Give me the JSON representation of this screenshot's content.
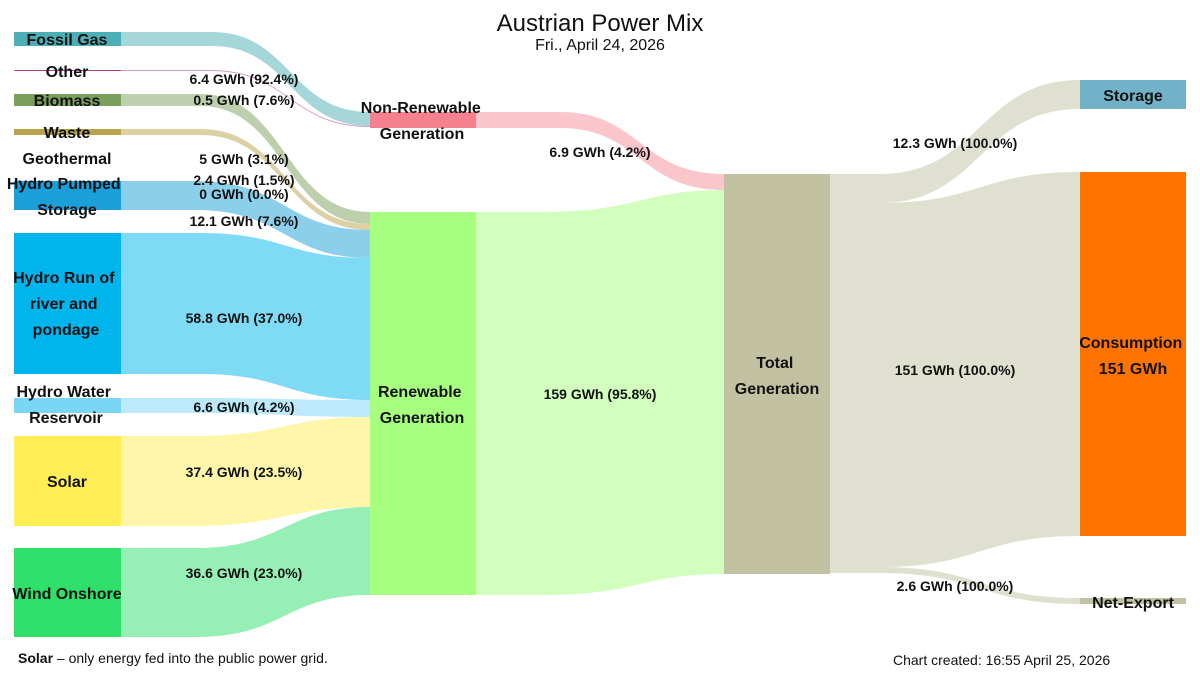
{
  "title": "Austrian Power Mix",
  "subtitle": "Fri., April 24, 2026",
  "footnote": {
    "term": "Solar",
    "text": "– only energy fed into the public power grid."
  },
  "created": "Chart created: 16:55 April 25, 2026",
  "colors": {
    "fossil_gas": "#4BAFB5",
    "other": "#B03A8C",
    "biomass": "#7BA05B",
    "waste": "#B8A44A",
    "hydro_pumped": "#1A9FD8",
    "hydro_run": "#00B5EE",
    "hydro_water_reservoir": "#7AD6F5",
    "solar": "#FFEE55",
    "wind_onshore": "#2EE06A",
    "non_renewable": "#F5808E",
    "renewable": "#A6FF7E",
    "total": "#C2C1A2",
    "storage": "#72B2C8",
    "consumption": "#FF7300",
    "net_export": "#C2C1A2"
  },
  "nodes": {
    "fossil_gas": "Fossil Gas",
    "other": "Other",
    "biomass": "Biomass",
    "waste": "Waste",
    "geothermal": "Geothermal",
    "hydro_pumped": [
      "Hydro Pumped",
      "Storage"
    ],
    "hydro_run": [
      "Hydro Run of",
      "river and",
      "pondage"
    ],
    "hydro_water_reservoir": [
      "Hydro Water",
      "Reservoir"
    ],
    "solar": "Solar",
    "wind_onshore": "Wind Onshore",
    "non_renewable": [
      "Non-Renewable",
      "Generation"
    ],
    "renewable": [
      "Renewable",
      "Generation"
    ],
    "total": [
      "Total",
      "Generation"
    ],
    "storage": "Storage",
    "consumption": [
      "Consumption",
      "151 GWh"
    ],
    "net_export": "Net-Export"
  },
  "flows": {
    "fossil_gas": "6.4 GWh (92.4%)",
    "other": "0.5 GWh (7.6%)",
    "biomass": "5 GWh (3.1%)",
    "waste": "2.4 GWh (1.5%)",
    "geothermal": "0 GWh (0.0%)",
    "hydro_pumped": "12.1 GWh (7.6%)",
    "hydro_run": "58.8 GWh (37.0%)",
    "hydro_water_reservoir": "6.6 GWh (4.2%)",
    "solar": "37.4 GWh (23.5%)",
    "wind_onshore": "36.6 GWh (23.0%)",
    "non_renewable": "6.9 GWh (4.2%)",
    "renewable": "159 GWh (95.8%)",
    "storage": "12.3 GWh (100.0%)",
    "consumption": "151 GWh (100.0%)",
    "net_export": "2.6 GWh (100.0%)"
  },
  "chart_data": {
    "type": "sankey",
    "title": "Austrian Power Mix",
    "subtitle": "Fri., April 24, 2026",
    "unit": "GWh",
    "links": [
      {
        "source": "Fossil Gas",
        "target": "Non-Renewable Generation",
        "value": 6.4,
        "share_pct": 92.4
      },
      {
        "source": "Other",
        "target": "Non-Renewable Generation",
        "value": 0.5,
        "share_pct": 7.6
      },
      {
        "source": "Biomass",
        "target": "Renewable Generation",
        "value": 5,
        "share_pct": 3.1
      },
      {
        "source": "Waste",
        "target": "Renewable Generation",
        "value": 2.4,
        "share_pct": 1.5
      },
      {
        "source": "Geothermal",
        "target": "Renewable Generation",
        "value": 0,
        "share_pct": 0.0
      },
      {
        "source": "Hydro Pumped Storage",
        "target": "Renewable Generation",
        "value": 12.1,
        "share_pct": 7.6
      },
      {
        "source": "Hydro Run of river and pondage",
        "target": "Renewable Generation",
        "value": 58.8,
        "share_pct": 37.0
      },
      {
        "source": "Hydro Water Reservoir",
        "target": "Renewable Generation",
        "value": 6.6,
        "share_pct": 4.2
      },
      {
        "source": "Solar",
        "target": "Renewable Generation",
        "value": 37.4,
        "share_pct": 23.5
      },
      {
        "source": "Wind Onshore",
        "target": "Renewable Generation",
        "value": 36.6,
        "share_pct": 23.0
      },
      {
        "source": "Non-Renewable Generation",
        "target": "Total Generation",
        "value": 6.9,
        "share_pct": 4.2
      },
      {
        "source": "Renewable Generation",
        "target": "Total Generation",
        "value": 159,
        "share_pct": 95.8
      },
      {
        "source": "Total Generation",
        "target": "Storage",
        "value": 12.3,
        "share_pct": 100.0
      },
      {
        "source": "Total Generation",
        "target": "Consumption",
        "value": 151,
        "share_pct": 100.0
      },
      {
        "source": "Total Generation",
        "target": "Net-Export",
        "value": 2.6,
        "share_pct": 100.0
      }
    ]
  }
}
